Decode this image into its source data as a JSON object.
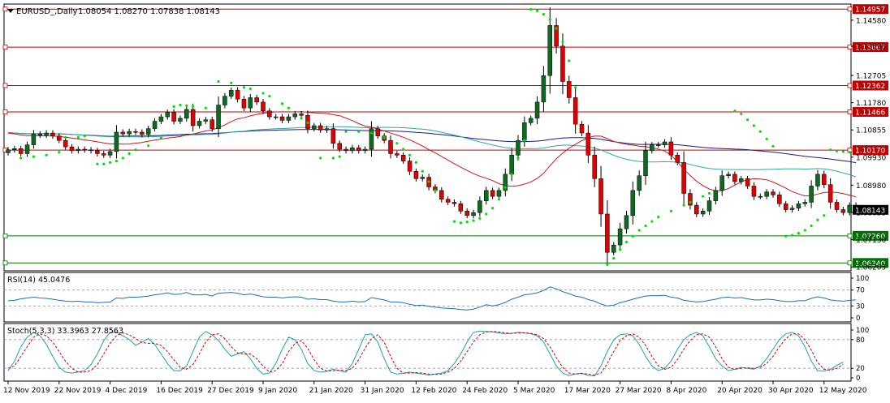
{
  "header": {
    "symbol_label": "EURUSD_,Daily",
    "ohlc_label": "1.08054 1.08270 1.07838 1.08143",
    "menu_icon": "triangle-down-icon"
  },
  "colors": {
    "bull": "#0b6b1f",
    "bear": "#e00000",
    "wick": "#000000",
    "sar": "#00e000",
    "ma_slow": "#1a1a8c",
    "ma_mid": "#2fa7a0",
    "ma_fast": "#c81a1a",
    "resistance": "#c00000",
    "support": "#007000",
    "rsi_line": "#1f6fb5",
    "stoch_main": "#1f9fb5",
    "stoch_signal": "#d00000"
  },
  "chart_data": [
    {
      "type": "candlestick",
      "name": "price",
      "title": "EURUSD_,Daily",
      "ylim": [
        1.061,
        1.151
      ],
      "y_ticks": [
        "1.14580",
        "1.13695",
        "1.12705",
        "1.11780",
        "1.10855",
        "1.09930",
        "1.08980",
        "1.08055",
        "1.07130",
        "1.06205"
      ],
      "y_tick_values": [
        1.1458,
        1.13695,
        1.12705,
        1.1178,
        1.10855,
        1.0993,
        1.0898,
        1.08055,
        1.0713,
        1.06205
      ],
      "x_ticks": [
        "12 Nov 2019",
        "22 Nov 2019",
        "4 Dec 2019",
        "16 Dec 2019",
        "27 Dec 2019",
        "9 Jan 2020",
        "21 Jan 2020",
        "31 Jan 2020",
        "12 Feb 2020",
        "24 Feb 2020",
        "5 Mar 2020",
        "17 Mar 2020",
        "27 Mar 2020",
        "8 Apr 2020",
        "20 Apr 2020",
        "30 Apr 2020",
        "12 May 2020"
      ],
      "x_tick_bar_index": [
        0,
        8,
        16,
        24,
        32,
        40,
        48,
        56,
        64,
        72,
        80,
        88,
        96,
        104,
        112,
        120,
        128
      ],
      "level_lines": [
        {
          "label": "1.14957",
          "value": 1.14957,
          "kind": "resistance"
        },
        {
          "label": "1.13667",
          "value": 1.13667,
          "kind": "resistance"
        },
        {
          "label": "1.12362",
          "value": 1.12362,
          "kind": "resistance"
        },
        {
          "label": "1.11466",
          "value": 1.11466,
          "kind": "resistance"
        },
        {
          "label": "1.10170",
          "value": 1.1017,
          "kind": "resistance"
        },
        {
          "label": "1.07260",
          "value": 1.0726,
          "kind": "support"
        },
        {
          "label": "1.06340",
          "value": 1.0634,
          "kind": "support"
        }
      ],
      "current_price_label": "1.08143",
      "current_price": 1.08143,
      "closes": [
        1.1018,
        1.1022,
        1.1005,
        1.1035,
        1.1072,
        1.1068,
        1.1075,
        1.1065,
        1.105,
        1.1028,
        1.1015,
        1.102,
        1.1018,
        1.1015,
        1.1005,
        1.1,
        1.1012,
        1.1078,
        1.1072,
        1.108,
        1.1078,
        1.107,
        1.109,
        1.1115,
        1.113,
        1.1145,
        1.1115,
        1.1125,
        1.1155,
        1.11,
        1.1115,
        1.112,
        1.109,
        1.117,
        1.12,
        1.122,
        1.119,
        1.116,
        1.1195,
        1.118,
        1.115,
        1.113,
        1.113,
        1.1118,
        1.113,
        1.114,
        1.1135,
        1.109,
        1.11,
        1.1085,
        1.109,
        1.104,
        1.102,
        1.1015,
        1.1025,
        1.1015,
        1.102,
        1.109,
        1.1065,
        1.105,
        1.1005,
        1.1,
        1.098,
        1.0945,
        1.092,
        1.0925,
        1.0892,
        1.088,
        1.085,
        1.084,
        1.0835,
        1.081,
        1.0795,
        1.0805,
        1.0845,
        1.088,
        1.086,
        1.088,
        1.0935,
        1.1,
        1.105,
        1.111,
        1.1125,
        1.118,
        1.127,
        1.144,
        1.137,
        1.125,
        1.1195,
        1.1105,
        1.1075,
        1.1,
        1.092,
        1.08,
        1.067,
        1.0695,
        1.075,
        1.0795,
        1.088,
        1.093,
        1.1015,
        1.1035,
        1.1035,
        1.1045,
        1.1,
        1.0975,
        1.087,
        1.083,
        1.08,
        1.081,
        1.0845,
        1.088,
        1.093,
        1.0935,
        1.091,
        1.092,
        1.0895,
        1.086,
        1.086,
        1.0875,
        1.0865,
        1.0835,
        1.0815,
        1.082,
        1.0835,
        1.084,
        1.0895,
        1.0935,
        1.09,
        1.084,
        1.0815,
        1.0805,
        1.083,
        1.0814
      ],
      "sar": [
        {
          "i": 2,
          "v": 1.099
        },
        {
          "i": 4,
          "v": 1.0995
        },
        {
          "i": 6,
          "v": 1.1
        },
        {
          "i": 8,
          "v": 1.101
        },
        {
          "i": 9,
          "v": 1.106
        },
        {
          "i": 11,
          "v": 1.106
        },
        {
          "i": 12,
          "v": 1.1065
        },
        {
          "i": 14,
          "v": 1.097
        },
        {
          "i": 15,
          "v": 1.097
        },
        {
          "i": 16,
          "v": 1.0975
        },
        {
          "i": 17,
          "v": 1.098
        },
        {
          "i": 18,
          "v": 1.099
        },
        {
          "i": 19,
          "v": 1.1005
        },
        {
          "i": 20,
          "v": 1.1018
        },
        {
          "i": 22,
          "v": 1.1032
        },
        {
          "i": 24,
          "v": 1.1058
        },
        {
          "i": 26,
          "v": 1.1165
        },
        {
          "i": 27,
          "v": 1.117
        },
        {
          "i": 28,
          "v": 1.1168
        },
        {
          "i": 29,
          "v": 1.1165
        },
        {
          "i": 31,
          "v": 1.116
        },
        {
          "i": 33,
          "v": 1.125
        },
        {
          "i": 35,
          "v": 1.1245
        },
        {
          "i": 37,
          "v": 1.123
        },
        {
          "i": 38,
          "v": 1.1225
        },
        {
          "i": 40,
          "v": 1.121
        },
        {
          "i": 41,
          "v": 1.12
        },
        {
          "i": 43,
          "v": 1.1175
        },
        {
          "i": 44,
          "v": 1.116
        },
        {
          "i": 46,
          "v": 1.1125
        },
        {
          "i": 47,
          "v": 1.111
        },
        {
          "i": 49,
          "v": 1.099
        },
        {
          "i": 51,
          "v": 1.099
        },
        {
          "i": 52,
          "v": 1.0995
        },
        {
          "i": 53,
          "v": 1.108
        },
        {
          "i": 55,
          "v": 1.108
        },
        {
          "i": 57,
          "v": 1.1075
        },
        {
          "i": 59,
          "v": 1.106
        },
        {
          "i": 61,
          "v": 1.104
        },
        {
          "i": 62,
          "v": 1.102
        },
        {
          "i": 63,
          "v": 1.1
        },
        {
          "i": 64,
          "v": 1.0975
        },
        {
          "i": 65,
          "v": 1.0945
        },
        {
          "i": 66,
          "v": 1.091
        },
        {
          "i": 67,
          "v": 1.088
        },
        {
          "i": 70,
          "v": 1.0775
        },
        {
          "i": 71,
          "v": 1.077
        },
        {
          "i": 72,
          "v": 1.0773
        },
        {
          "i": 73,
          "v": 1.0778
        },
        {
          "i": 74,
          "v": 1.0785
        },
        {
          "i": 75,
          "v": 1.08
        },
        {
          "i": 76,
          "v": 1.082
        },
        {
          "i": 77,
          "v": 1.085
        },
        {
          "i": 78,
          "v": 1.089
        },
        {
          "i": 79,
          "v": 1.0935
        },
        {
          "i": 80,
          "v": 1.099
        },
        {
          "i": 81,
          "v": 1.105
        },
        {
          "i": 82,
          "v": 1.1495
        },
        {
          "i": 83,
          "v": 1.149
        },
        {
          "i": 84,
          "v": 1.1478
        },
        {
          "i": 85,
          "v": 1.146
        },
        {
          "i": 86,
          "v": 1.143
        },
        {
          "i": 87,
          "v": 1.1385
        },
        {
          "i": 88,
          "v": 1.132
        },
        {
          "i": 89,
          "v": 1.123
        },
        {
          "i": 94,
          "v": 1.063
        },
        {
          "i": 95,
          "v": 1.065
        },
        {
          "i": 96,
          "v": 1.068
        },
        {
          "i": 97,
          "v": 1.0705
        },
        {
          "i": 98,
          "v": 1.0725
        },
        {
          "i": 99,
          "v": 1.0745
        },
        {
          "i": 100,
          "v": 1.076
        },
        {
          "i": 101,
          "v": 1.0775
        },
        {
          "i": 102,
          "v": 1.079
        },
        {
          "i": 104,
          "v": 1.081
        },
        {
          "i": 106,
          "v": 1.083
        },
        {
          "i": 107,
          "v": 1.084
        },
        {
          "i": 109,
          "v": 1.086
        },
        {
          "i": 110,
          "v": 1.087
        },
        {
          "i": 114,
          "v": 1.115
        },
        {
          "i": 115,
          "v": 1.114
        },
        {
          "i": 116,
          "v": 1.112
        },
        {
          "i": 117,
          "v": 1.11
        },
        {
          "i": 118,
          "v": 1.108
        },
        {
          "i": 119,
          "v": 1.1055
        },
        {
          "i": 120,
          "v": 1.103
        },
        {
          "i": 122,
          "v": 1.0725
        },
        {
          "i": 123,
          "v": 1.0728
        },
        {
          "i": 124,
          "v": 1.0735
        },
        {
          "i": 125,
          "v": 1.0745
        },
        {
          "i": 126,
          "v": 1.076
        },
        {
          "i": 127,
          "v": 1.078
        },
        {
          "i": 128,
          "v": 1.0795
        },
        {
          "i": 129,
          "v": 1.1018
        },
        {
          "i": 130,
          "v": 1.1014
        },
        {
          "i": 131,
          "v": 1.1012
        },
        {
          "i": 132,
          "v": 1.101
        }
      ]
    },
    {
      "type": "line",
      "name": "rsi",
      "title": "RSI(14) 45.0476",
      "ylim": [
        0,
        100
      ],
      "y_ticks": [
        "100",
        "70",
        "30",
        "0"
      ],
      "y_tick_values": [
        100,
        70,
        30,
        0
      ],
      "levels": [
        70,
        30
      ],
      "series": [
        {
          "values": [
            43,
            44,
            48,
            50,
            52,
            50,
            49,
            47,
            44,
            42,
            41,
            42,
            40,
            40,
            38,
            39,
            40,
            50,
            49,
            52,
            52,
            53,
            55,
            58,
            60,
            63,
            59,
            60,
            64,
            58,
            58,
            59,
            55,
            62,
            63,
            64,
            62,
            58,
            60,
            57,
            53,
            52,
            52,
            50,
            52,
            53,
            52,
            47,
            48,
            46,
            46,
            42,
            40,
            40,
            42,
            40,
            41,
            51,
            48,
            45,
            40,
            40,
            38,
            34,
            31,
            32,
            29,
            27,
            25,
            24,
            23,
            21,
            20,
            22,
            27,
            33,
            30,
            33,
            39,
            47,
            52,
            58,
            60,
            63,
            69,
            78,
            73,
            66,
            61,
            55,
            52,
            46,
            42,
            35,
            30,
            32,
            38,
            42,
            47,
            51,
            55,
            56,
            56,
            57,
            52,
            50,
            44,
            42,
            40,
            41,
            44,
            47,
            51,
            52,
            50,
            51,
            48,
            45,
            45,
            47,
            46,
            43,
            41,
            41,
            43,
            43,
            49,
            53,
            50,
            45,
            43,
            42,
            44,
            45
          ]
        }
      ]
    },
    {
      "type": "line",
      "name": "stochastic",
      "title": "Stoch(5,3,3) 33.3963 27.8563",
      "ylim": [
        0,
        100
      ],
      "y_ticks": [
        "100",
        "80",
        "20",
        "0"
      ],
      "y_tick_values": [
        100,
        80,
        20,
        0
      ],
      "levels": [
        80,
        20
      ],
      "series": [
        {
          "values": [
            15,
            35,
            65,
            85,
            95,
            88,
            70,
            45,
            22,
            12,
            10,
            12,
            15,
            28,
            50,
            78,
            95,
            96,
            88,
            80,
            68,
            75,
            82,
            70,
            50,
            30,
            15,
            15,
            25,
            55,
            85,
            97,
            90,
            78,
            60,
            45,
            50,
            55,
            40,
            20,
            8,
            10,
            30,
            60,
            85,
            80,
            60,
            30,
            15,
            12,
            14,
            18,
            15,
            12,
            30,
            60,
            90,
            92,
            75,
            40,
            12,
            8,
            10,
            12,
            10,
            8,
            6,
            8,
            10,
            15,
            30,
            50,
            75,
            95,
            98,
            97,
            96,
            94,
            92,
            93,
            95,
            94,
            92,
            88,
            75,
            50,
            25,
            10,
            5,
            8,
            10,
            5,
            4,
            25,
            55,
            80,
            90,
            92,
            88,
            70,
            45,
            25,
            15,
            20,
            35,
            60,
            80,
            90,
            95,
            88,
            65,
            40,
            25,
            15,
            18,
            22,
            20,
            18,
            25,
            40,
            60,
            80,
            92,
            95,
            88,
            65,
            35,
            15,
            14,
            18,
            26,
            33
          ]
        },
        {
          "values": [
            20,
            25,
            45,
            65,
            85,
            92,
            88,
            75,
            55,
            35,
            20,
            12,
            12,
            15,
            28,
            50,
            72,
            88,
            94,
            90,
            82,
            74,
            72,
            72,
            68,
            55,
            38,
            22,
            18,
            28,
            50,
            75,
            90,
            92,
            82,
            65,
            52,
            50,
            50,
            40,
            25,
            12,
            15,
            30,
            55,
            72,
            78,
            62,
            38,
            20,
            14,
            15,
            16,
            15,
            20,
            38,
            62,
            82,
            90,
            75,
            45,
            20,
            10,
            10,
            11,
            10,
            8,
            7,
            8,
            12,
            20,
            35,
            55,
            75,
            90,
            96,
            97,
            96,
            94,
            93,
            94,
            94,
            93,
            90,
            82,
            65,
            42,
            22,
            10,
            8,
            9,
            8,
            6,
            10,
            30,
            55,
            78,
            88,
            92,
            85,
            68,
            45,
            25,
            18,
            22,
            38,
            60,
            78,
            90,
            92,
            85,
            65,
            40,
            22,
            18,
            20,
            21,
            20,
            22,
            30,
            45,
            65,
            82,
            92,
            92,
            80,
            58,
            32,
            18,
            16,
            20,
            28
          ]
        }
      ]
    }
  ]
}
